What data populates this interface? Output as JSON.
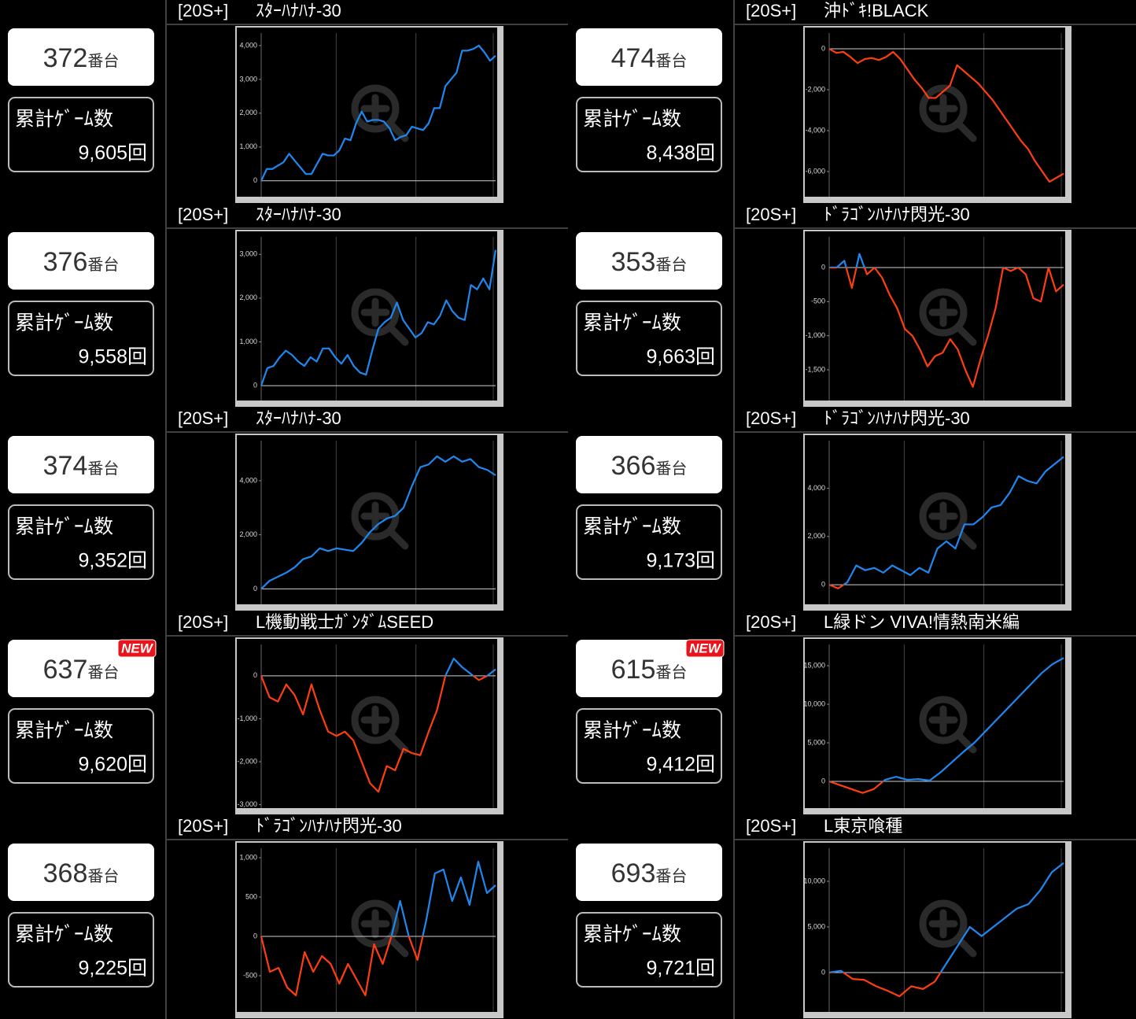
{
  "colors": {
    "above_zero": "#1e88f0",
    "below_zero": "#ff3d12"
  },
  "machines": [
    {
      "number": "372",
      "unit": "番台",
      "games_label": "累計ｹﾞｰﾑ数",
      "games": "9,605回",
      "tag": "[20S+]",
      "name": "ｽﾀｰﾊﾅﾊﾅ-30",
      "chart": {
        "type": "line",
        "ylim": [
          -470,
          4370
        ],
        "yticks": [
          0,
          {
            "value": 1000,
            "label": "1,000"
          },
          {
            "value": 2000,
            "label": "2,000"
          },
          {
            "value": 3000,
            "label": "3,000"
          },
          {
            "value": 4000,
            "label": "4,000"
          }
        ],
        "values": [
          0,
          350,
          350,
          450,
          550,
          800,
          600,
          400,
          200,
          200,
          500,
          800,
          750,
          750,
          900,
          1250,
          1200,
          1700,
          2050,
          1750,
          1800,
          1800,
          1750,
          1550,
          1200,
          1300,
          1350,
          1600,
          1550,
          1500,
          1700,
          2150,
          2150,
          2800,
          3000,
          3200,
          3850,
          3850,
          3900,
          4000,
          3800,
          3550,
          3700
        ]
      }
    },
    {
      "number": "474",
      "unit": "番台",
      "games_label": "累計ｹﾞｰﾑ数",
      "games": "8,438回",
      "tag": "[20S+]",
      "name": "沖ﾄﾞｷ!BLACK",
      "chart": {
        "type": "line",
        "ylim": [
          -7230,
          770
        ],
        "yticks": [
          0,
          {
            "value": -2000,
            "label": "-2,000"
          },
          {
            "value": -4000,
            "label": "-4,000"
          },
          {
            "value": -6000,
            "label": "-6,000"
          }
        ],
        "values": [
          0,
          -200,
          -150,
          -400,
          -700,
          -500,
          -450,
          -550,
          -400,
          -150,
          -500,
          -1000,
          -1500,
          -1900,
          -2400,
          -2400,
          -2100,
          -1800,
          -800,
          -1100,
          -1400,
          -1700,
          -2100,
          -2500,
          -3000,
          -3500,
          -4000,
          -4500,
          -4900,
          -5500,
          -6000,
          -6500,
          -6300,
          -6100
        ]
      }
    },
    {
      "number": "376",
      "unit": "番台",
      "games_label": "累計ｹﾞｰﾑ数",
      "games": "9,558回",
      "tag": "[20S+]",
      "name": "ｽﾀｰﾊﾅﾊﾅ-30",
      "chart": {
        "type": "line",
        "ylim": [
          -340,
          3400
        ],
        "yticks": [
          0,
          {
            "value": 1000,
            "label": "1,000"
          },
          {
            "value": 2000,
            "label": "2,000"
          },
          {
            "value": 3000,
            "label": "3,000"
          }
        ],
        "values": [
          0,
          400,
          450,
          650,
          800,
          700,
          550,
          450,
          650,
          550,
          850,
          850,
          650,
          500,
          700,
          450,
          300,
          250,
          800,
          1300,
          1450,
          1550,
          1900,
          1500,
          1300,
          1100,
          1200,
          1450,
          1400,
          1600,
          1950,
          1700,
          1550,
          1500,
          2300,
          2200,
          2450,
          2200,
          3100
        ]
      }
    },
    {
      "number": "353",
      "unit": "番台",
      "games_label": "累計ｹﾞｰﾑ数",
      "games": "9,663回",
      "tag": "[20S+]",
      "name": "ﾄﾞﾗｺﾞﾝﾊﾅﾊﾅ閃光-30",
      "chart": {
        "type": "line",
        "ylim": [
          -1950,
          450
        ],
        "yticks": [
          0,
          -500,
          {
            "value": -1000,
            "label": "-1,000"
          },
          {
            "value": -1500,
            "label": "-1,500"
          }
        ],
        "values": [
          0,
          0,
          100,
          -300,
          200,
          -100,
          0,
          -150,
          -400,
          -600,
          -900,
          -1000,
          -1200,
          -1450,
          -1300,
          -1250,
          -1050,
          -1200,
          -1500,
          -1750,
          -1350,
          -1000,
          -600,
          0,
          -50,
          0,
          -100,
          -450,
          -500,
          0,
          -350,
          -250
        ]
      }
    },
    {
      "number": "374",
      "unit": "番台",
      "games_label": "累計ｹﾞｰﾑ数",
      "games": "9,352回",
      "tag": "[20S+]",
      "name": "ｽﾀｰﾊﾅﾊﾅ-30",
      "chart": {
        "type": "line",
        "ylim": [
          -570,
          5480
        ],
        "yticks": [
          0,
          {
            "value": 2000,
            "label": "2,000"
          },
          {
            "value": 4000,
            "label": "4,000"
          }
        ],
        "values": [
          0,
          300,
          450,
          600,
          800,
          1100,
          1200,
          1500,
          1400,
          1500,
          1450,
          1400,
          1700,
          2100,
          2400,
          2600,
          2700,
          3000,
          3800,
          4500,
          4600,
          4900,
          4700,
          4900,
          4700,
          4800,
          4500,
          4400,
          4200
        ]
      }
    },
    {
      "number": "366",
      "unit": "番台",
      "games_label": "累計ｹﾞｰﾑ数",
      "games": "9,173回",
      "tag": "[20S+]",
      "name": "ﾄﾞﾗｺﾞﾝﾊﾅﾊﾅ閃光-30",
      "chart": {
        "type": "line",
        "ylim": [
          -810,
          5970
        ],
        "yticks": [
          0,
          {
            "value": 2000,
            "label": "2,000"
          },
          {
            "value": 4000,
            "label": "4,000"
          }
        ],
        "values": [
          0,
          -150,
          100,
          800,
          600,
          700,
          500,
          800,
          600,
          400,
          700,
          500,
          1500,
          1800,
          1500,
          2500,
          2500,
          2800,
          3200,
          3300,
          3800,
          4500,
          4300,
          4200,
          4700,
          5000,
          5300
        ]
      }
    },
    {
      "number": "637",
      "unit": "番台",
      "badge": "NEW",
      "games_label": "累計ｹﾞｰﾑ数",
      "games": "9,620回",
      "tag": "[20S+]",
      "name": "L機動戦士ｶﾞﾝﾀﾞﾑSEED",
      "chart": {
        "type": "line",
        "ylim": [
          -3080,
          730
        ],
        "yticks": [
          0,
          {
            "value": -1000,
            "label": "-1,000"
          },
          {
            "value": -2000,
            "label": "-2,000"
          },
          {
            "value": -3000,
            "label": "-3,000"
          }
        ],
        "values": [
          0,
          -500,
          -600,
          -200,
          -450,
          -900,
          -200,
          -800,
          -1300,
          -1400,
          -1300,
          -1500,
          -2000,
          -2500,
          -2700,
          -2100,
          -2200,
          -1700,
          -1800,
          -1850,
          -1300,
          -800,
          0,
          400,
          200,
          50,
          -100,
          0,
          150
        ]
      }
    },
    {
      "number": "615",
      "unit": "番台",
      "badge": "NEW",
      "games_label": "累計ｹﾞｰﾑ数",
      "games": "9,412回",
      "tag": "[20S+]",
      "name": "L緑ドン VIVA!情熱南米編",
      "chart": {
        "type": "line",
        "ylim": [
          -3470,
          17760
        ],
        "yticks": [
          0,
          {
            "value": 5000,
            "label": "5,000"
          },
          {
            "value": 10000,
            "label": "10,000"
          },
          {
            "value": 15000,
            "label": "15,000"
          }
        ],
        "values": [
          0,
          -500,
          -1000,
          -1500,
          -1000,
          200,
          600,
          200,
          300,
          100,
          1200,
          2500,
          3800,
          5000,
          6500,
          8000,
          9500,
          11000,
          12500,
          14000,
          15200,
          16000
        ]
      }
    },
    {
      "number": "368",
      "unit": "番台",
      "games_label": "累計ｹﾞｰﾑ数",
      "games": "9,225回",
      "tag": "[20S+]",
      "name": "ﾄﾞﾗｺﾞﾝﾊﾅﾊﾅ閃光-30",
      "chart": {
        "type": "line",
        "ylim": [
          -960,
          1120
        ],
        "yticks": [
          {
            "value": 1000,
            "label": "1,000"
          },
          500,
          0,
          -500
        ],
        "values": [
          0,
          -450,
          -400,
          -650,
          -750,
          -200,
          -450,
          -250,
          -350,
          -600,
          -350,
          -550,
          -750,
          -100,
          -350,
          0,
          450,
          0,
          -300,
          200,
          800,
          850,
          450,
          750,
          400,
          950,
          550,
          650
        ]
      }
    },
    {
      "number": "693",
      "unit": "番台",
      "games_label": "累計ｹﾞｰﾑ数",
      "games": "9,721回",
      "tag": "[20S+]",
      "name": "L東京喰種",
      "chart": {
        "type": "line",
        "ylim": [
          -4310,
          13620
        ],
        "yticks": [
          {
            "value": 10000,
            "label": "10,000"
          },
          {
            "value": 5000,
            "label": "5,000"
          },
          0
        ],
        "values": [
          0,
          200,
          -700,
          -800,
          -1500,
          -2000,
          -2600,
          -1500,
          -1800,
          -1000,
          1000,
          3000,
          5000,
          4000,
          5000,
          6000,
          7000,
          7500,
          9000,
          11000,
          12000
        ]
      }
    }
  ]
}
